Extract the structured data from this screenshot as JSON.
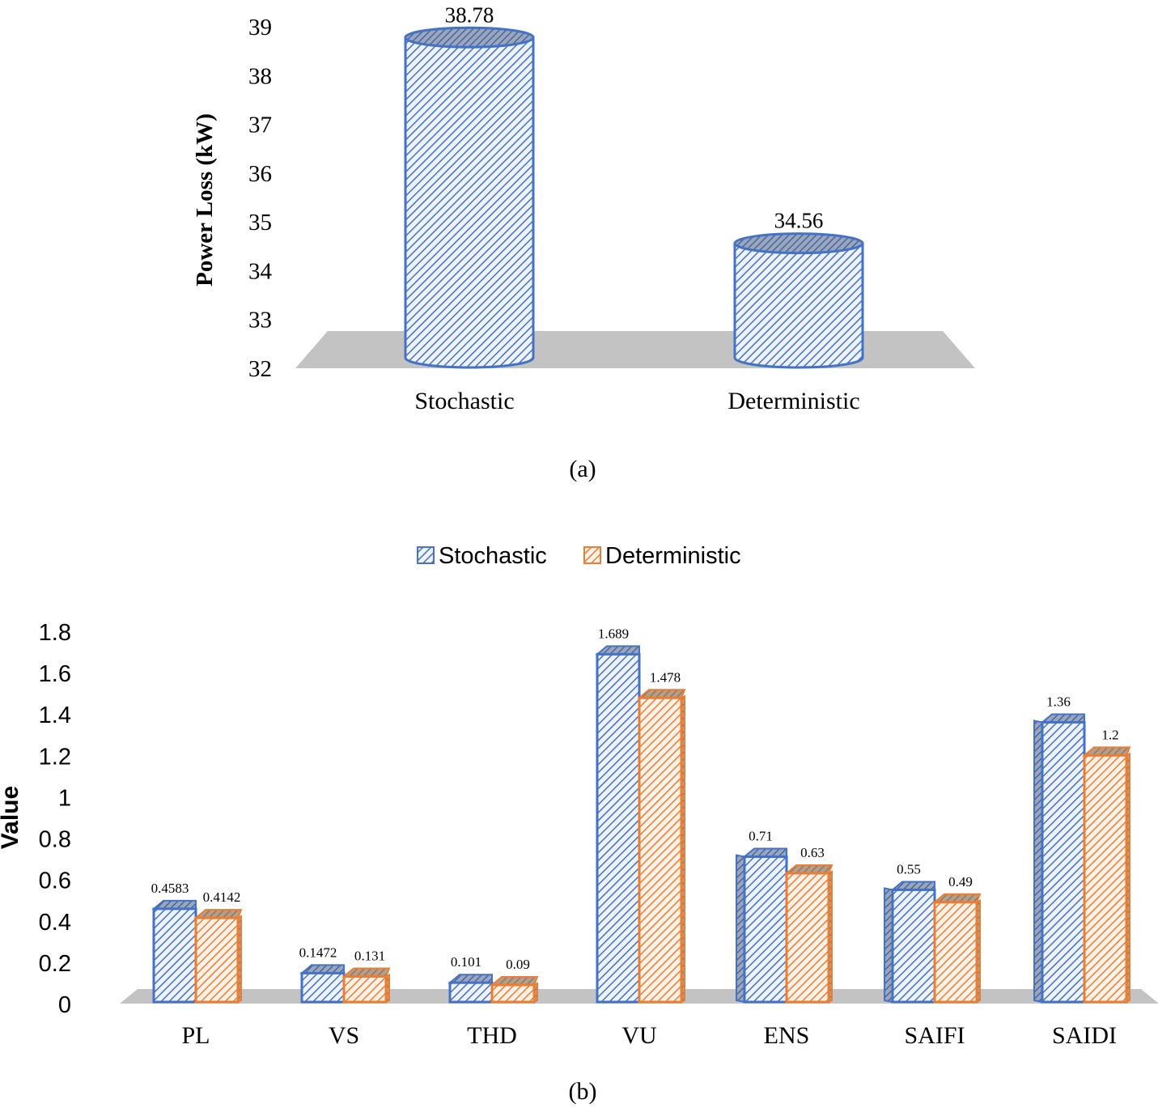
{
  "chart_data": [
    {
      "type": "bar",
      "style": "3d-cylinder",
      "panel_label": "(a)",
      "title": "",
      "xlabel": "",
      "ylabel": "Power Loss (kW)",
      "categories": [
        "Stochastic",
        "Deterministic"
      ],
      "values": [
        38.78,
        34.56
      ],
      "value_labels": [
        "38.78",
        "34.56"
      ],
      "ylim": [
        32,
        39
      ],
      "yticks": [
        "32",
        "33",
        "34",
        "35",
        "36",
        "37",
        "38",
        "39"
      ],
      "color": "#4472c4",
      "grid": false,
      "legend": "none"
    },
    {
      "type": "bar",
      "style": "3d-clustered-column",
      "panel_label": "(b)",
      "title": "",
      "xlabel": "",
      "ylabel": "Value",
      "categories": [
        "PL",
        "VS",
        "THD",
        "VU",
        "ENS",
        "SAIFI",
        "SAIDI"
      ],
      "series": [
        {
          "name": "Stochastic",
          "color": "#4472c4",
          "values": [
            0.4583,
            0.1472,
            0.101,
            1.689,
            0.71,
            0.55,
            1.36
          ],
          "labels": [
            "0.4583",
            "0.1472",
            "0.101",
            "1.689",
            "0.71",
            "0.55",
            "1.36"
          ]
        },
        {
          "name": "Deterministic",
          "color": "#ed7d31",
          "values": [
            0.4142,
            0.131,
            0.09,
            1.478,
            0.63,
            0.49,
            1.2
          ],
          "labels": [
            "0.4142",
            "0.131",
            "0.09",
            "1.478",
            "0.63",
            "0.49",
            "1.2"
          ]
        }
      ],
      "ylim": [
        0,
        1.8
      ],
      "yticks": [
        "0",
        "0.2",
        "0.4",
        "0.6",
        "0.8",
        "1",
        "1.2",
        "1.4",
        "1.6",
        "1.8"
      ],
      "grid": false,
      "legend": "top-center"
    }
  ]
}
